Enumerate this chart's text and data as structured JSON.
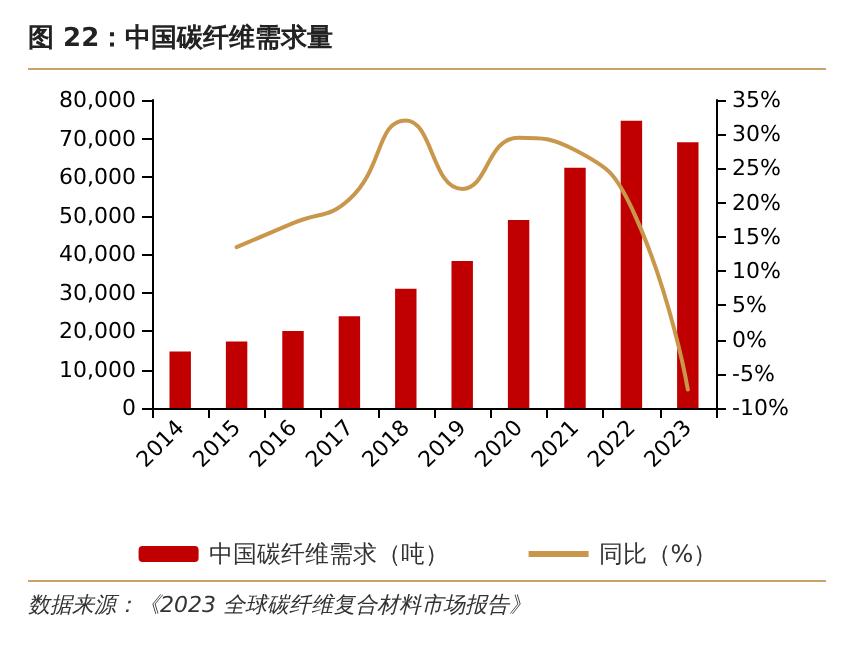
{
  "chart_data": {
    "type": "bar",
    "title": "图 22：中国碳纤维需求量",
    "categories": [
      "2014",
      "2015",
      "2016",
      "2017",
      "2018",
      "2019",
      "2020",
      "2021",
      "2022",
      "2023"
    ],
    "series": [
      {
        "name": "中国碳纤维需求（吨）",
        "color": "#c00000",
        "values": [
          14700,
          17300,
          20000,
          23800,
          31000,
          38200,
          48800,
          62400,
          74600,
          69000
        ]
      },
      {
        "name": "同比（%）",
        "type": "line",
        "axis": "y2",
        "color": "#c9974c",
        "values": [
          null,
          13.5,
          17,
          20.5,
          32,
          22,
          29.5,
          27.7,
          19.3,
          -7.3
        ]
      }
    ],
    "ylim": [
      0,
      80000
    ],
    "yticks": [
      {
        "value": 0,
        "label": "0"
      },
      {
        "value": 10000,
        "label": "10,000"
      },
      {
        "value": 20000,
        "label": "20,000"
      },
      {
        "value": 30000,
        "label": "30,000"
      },
      {
        "value": 40000,
        "label": "40,000"
      },
      {
        "value": 50000,
        "label": "50,000"
      },
      {
        "value": 60000,
        "label": "60,000"
      },
      {
        "value": 70000,
        "label": "70,000"
      },
      {
        "value": 80000,
        "label": "80,000"
      }
    ],
    "y2lim": [
      -10,
      35
    ],
    "y2ticks": [
      {
        "value": -10,
        "label": "-10%"
      },
      {
        "value": -5,
        "label": "-5%"
      },
      {
        "value": 0,
        "label": "0%"
      },
      {
        "value": 5,
        "label": "5%"
      },
      {
        "value": 10,
        "label": "10%"
      },
      {
        "value": 15,
        "label": "15%"
      },
      {
        "value": 20,
        "label": "20%"
      },
      {
        "value": 25,
        "label": "25%"
      },
      {
        "value": 30,
        "label": "30%"
      },
      {
        "value": 35,
        "label": "35%"
      }
    ],
    "grid": false,
    "legend": "bottom",
    "marker": "none",
    "line_style": "solid",
    "annotations": [
      "数据来源：《2023 全球碳纤维复合材料市场报告》"
    ]
  }
}
